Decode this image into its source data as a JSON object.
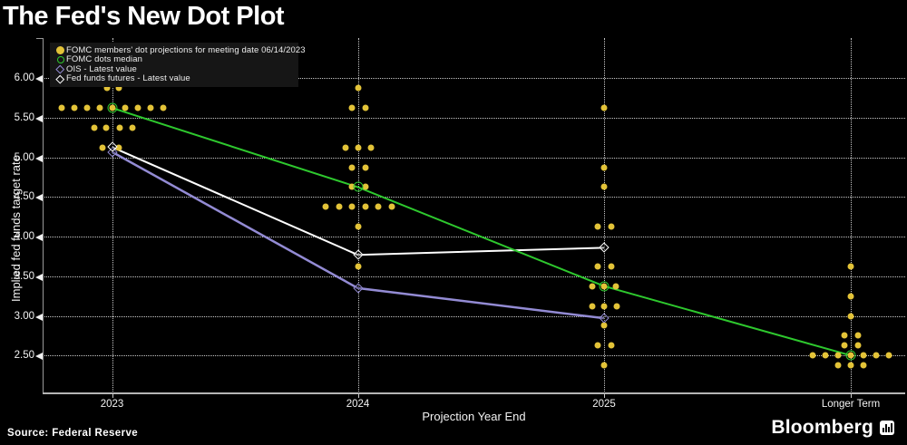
{
  "header": {
    "title": "The Fed's New Dot Plot"
  },
  "footer": {
    "source": "Source: Federal Reserve",
    "brand": "Bloomberg"
  },
  "legend": {
    "items": [
      {
        "marker": "filled-circle",
        "color": "#e3c338",
        "label": "FOMC members' dot projections for meeting date 06/14/2023"
      },
      {
        "marker": "open-circle",
        "color": "#2ec82e",
        "label": "FOMC dots median"
      },
      {
        "marker": "open-diamond",
        "color": "#938bd4",
        "label": "OIS - Latest value"
      },
      {
        "marker": "open-diamond",
        "color": "#ffffff",
        "label": "Fed funds futures - Latest value"
      }
    ]
  },
  "chart_data": {
    "type": "scatter",
    "title": "The Fed's New Dot Plot",
    "xlabel": "Projection Year End",
    "ylabel": "Implied fed funds target rate",
    "categories": [
      "2023",
      "2024",
      "2025",
      "Longer Term"
    ],
    "ylim": [
      2.0,
      6.5
    ],
    "grid": "dotted horizontal at each 0.50 plus dotted vertical per category",
    "legend_position": "top-left inset box",
    "y_ticks": [
      {
        "label": "6.00",
        "value": 6.0
      },
      {
        "label": "5.50",
        "value": 5.5
      },
      {
        "label": "5.00",
        "value": 5.0
      },
      {
        "label": "4.50",
        "value": 4.5
      },
      {
        "label": "4.00",
        "value": 4.0
      },
      {
        "label": "3.50",
        "value": 3.5
      },
      {
        "label": "3.00",
        "value": 3.0
      },
      {
        "label": "2.50",
        "value": 2.5
      }
    ],
    "dot_color": "#e3c338",
    "dots": [
      {
        "category": "2023",
        "value": 5.875,
        "offsets": [
          -6,
          7
        ]
      },
      {
        "category": "2023",
        "value": 5.625,
        "offsets": [
          -56,
          -42,
          -28,
          -14,
          0,
          14,
          28,
          42,
          56
        ]
      },
      {
        "category": "2023",
        "value": 5.375,
        "offsets": [
          -20,
          -7,
          8,
          22
        ]
      },
      {
        "category": "2023",
        "value": 5.125,
        "offsets": [
          -11,
          7
        ]
      },
      {
        "category": "2024",
        "value": 5.875,
        "offsets": [
          0
        ]
      },
      {
        "category": "2024",
        "value": 5.625,
        "offsets": [
          -7,
          8
        ]
      },
      {
        "category": "2024",
        "value": 5.125,
        "offsets": [
          -14,
          0,
          14
        ]
      },
      {
        "category": "2024",
        "value": 4.875,
        "offsets": [
          -7,
          8
        ]
      },
      {
        "category": "2024",
        "value": 4.625,
        "offsets": [
          -7,
          8
        ]
      },
      {
        "category": "2024",
        "value": 4.375,
        "offsets": [
          -36,
          -21,
          -7,
          8,
          22,
          37
        ]
      },
      {
        "category": "2024",
        "value": 4.125,
        "offsets": [
          0
        ]
      },
      {
        "category": "2024",
        "value": 3.625,
        "offsets": [
          0
        ]
      },
      {
        "category": "2025",
        "value": 5.625,
        "offsets": [
          0
        ]
      },
      {
        "category": "2025",
        "value": 4.875,
        "offsets": [
          0
        ]
      },
      {
        "category": "2025",
        "value": 4.625,
        "offsets": [
          0
        ]
      },
      {
        "category": "2025",
        "value": 4.125,
        "offsets": [
          -7,
          8
        ]
      },
      {
        "category": "2025",
        "value": 3.625,
        "offsets": [
          -7,
          8
        ]
      },
      {
        "category": "2025",
        "value": 3.375,
        "offsets": [
          -13,
          0,
          13
        ]
      },
      {
        "category": "2025",
        "value": 3.125,
        "offsets": [
          -13,
          0,
          14
        ]
      },
      {
        "category": "2025",
        "value": 2.875,
        "offsets": [
          0
        ]
      },
      {
        "category": "2025",
        "value": 2.625,
        "offsets": [
          -7,
          8
        ]
      },
      {
        "category": "2025",
        "value": 2.375,
        "offsets": [
          0
        ]
      },
      {
        "category": "Longer Term",
        "value": 3.625,
        "offsets": [
          0
        ]
      },
      {
        "category": "Longer Term",
        "value": 3.25,
        "offsets": [
          0
        ]
      },
      {
        "category": "Longer Term",
        "value": 3.0,
        "offsets": [
          0
        ]
      },
      {
        "category": "Longer Term",
        "value": 2.75,
        "offsets": [
          -7,
          8
        ]
      },
      {
        "category": "Longer Term",
        "value": 2.625,
        "offsets": [
          -7,
          8
        ]
      },
      {
        "category": "Longer Term",
        "value": 2.5,
        "offsets": [
          -42,
          -28,
          -14,
          0,
          14,
          28,
          42
        ]
      },
      {
        "category": "Longer Term",
        "value": 2.375,
        "offsets": [
          -14,
          0,
          14
        ]
      }
    ],
    "series": [
      {
        "name": "OIS - Latest value",
        "color": "#938bd4",
        "width": 2.5,
        "marker": "open-diamond",
        "points": [
          {
            "category": "2023",
            "value": 5.07
          },
          {
            "category": "2024",
            "value": 3.35
          },
          {
            "category": "2025",
            "value": 2.97
          }
        ]
      },
      {
        "name": "Fed funds futures - Latest value",
        "color": "#ffffff",
        "width": 2,
        "marker": "open-diamond",
        "points": [
          {
            "category": "2023",
            "value": 5.13
          },
          {
            "category": "2024",
            "value": 3.77
          },
          {
            "category": "2025",
            "value": 3.86
          }
        ]
      },
      {
        "name": "FOMC dots median",
        "color": "#2ec82e",
        "width": 2,
        "marker": "open-circle",
        "points": [
          {
            "category": "2023",
            "value": 5.625
          },
          {
            "category": "2024",
            "value": 4.625
          },
          {
            "category": "2025",
            "value": 3.375
          },
          {
            "category": "Longer Term",
            "value": 2.5
          }
        ]
      }
    ]
  }
}
